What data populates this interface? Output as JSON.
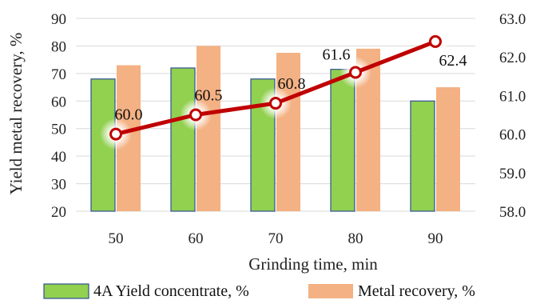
{
  "chart_data": {
    "type": "bar",
    "title": "",
    "xlabel": "Grinding time, min",
    "ylabel": "Yield metal recovery, %",
    "y2label": "",
    "categories": [
      "50",
      "60",
      "70",
      "80",
      "90"
    ],
    "ylim": [
      20,
      90
    ],
    "y2lim": [
      58.0,
      63.0
    ],
    "yticks": [
      "20",
      "30",
      "40",
      "50",
      "60",
      "70",
      "80",
      "90"
    ],
    "y2ticks": [
      "58.0",
      "59.0",
      "60.0",
      "61.0",
      "62.0",
      "63.0"
    ],
    "series": [
      {
        "name": "4A Yield concentrate, %",
        "type": "bar",
        "axis": "left",
        "values": [
          68,
          72,
          68,
          71.5,
          60
        ],
        "color": "#92d050",
        "edge": "#2f4f8f"
      },
      {
        "name": "Metal recovery, %",
        "type": "bar",
        "axis": "left",
        "values": [
          73,
          80,
          77.5,
          79,
          65
        ],
        "color": "#f4b183"
      },
      {
        "name": "",
        "type": "line",
        "axis": "right",
        "values": [
          60.0,
          60.5,
          60.8,
          61.6,
          62.4
        ],
        "labels": [
          "60.0",
          "60.5",
          "60.8",
          "61.6",
          "62.4"
        ],
        "color": "#c00000"
      }
    ],
    "grid": true,
    "legend": "bottom"
  }
}
